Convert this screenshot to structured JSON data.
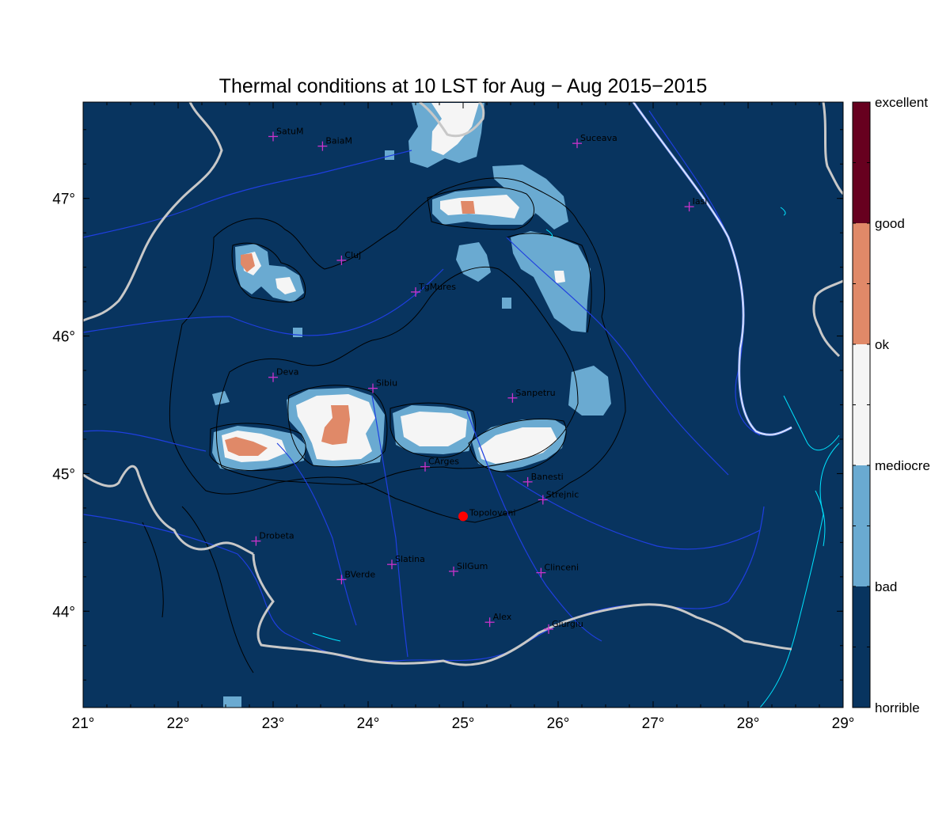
{
  "title": "Thermal conditions at 10 LST for Aug − Aug  2015−2015",
  "map": {
    "lon_range": [
      21,
      29
    ],
    "lat_range": [
      43.3,
      47.7
    ],
    "x_ticks": [
      "21°",
      "22°",
      "23°",
      "24°",
      "25°",
      "26°",
      "27°",
      "28°",
      "29°"
    ],
    "y_ticks": [
      "44°",
      "45°",
      "46°",
      "47°"
    ],
    "background_category": "horrible",
    "cities": [
      {
        "name": "SatuM",
        "lon": 23.0,
        "lat": 47.45
      },
      {
        "name": "BaiaM",
        "lon": 23.52,
        "lat": 47.38
      },
      {
        "name": "Suceava",
        "lon": 26.2,
        "lat": 47.4
      },
      {
        "name": "Iasi",
        "lon": 27.38,
        "lat": 46.94
      },
      {
        "name": "Cluj",
        "lon": 23.72,
        "lat": 46.55
      },
      {
        "name": "TgMures",
        "lon": 24.5,
        "lat": 46.32
      },
      {
        "name": "Deva",
        "lon": 23.0,
        "lat": 45.7
      },
      {
        "name": "Sibiu",
        "lon": 24.05,
        "lat": 45.62
      },
      {
        "name": "Sanpetru",
        "lon": 25.52,
        "lat": 45.55
      },
      {
        "name": "CArges",
        "lon": 24.6,
        "lat": 45.05
      },
      {
        "name": "Banesti",
        "lon": 25.68,
        "lat": 44.94
      },
      {
        "name": "Strejnic",
        "lon": 25.84,
        "lat": 44.81
      },
      {
        "name": "Drobeta",
        "lon": 22.82,
        "lat": 44.51
      },
      {
        "name": "Slatina",
        "lon": 24.25,
        "lat": 44.34
      },
      {
        "name": "SilGum",
        "lon": 24.9,
        "lat": 44.29
      },
      {
        "name": "Clinceni",
        "lon": 25.82,
        "lat": 44.28
      },
      {
        "name": "BVerde",
        "lon": 23.72,
        "lat": 44.23
      },
      {
        "name": "Alex",
        "lon": 25.28,
        "lat": 43.92
      },
      {
        "name": "Giurgiu",
        "lon": 25.9,
        "lat": 43.87
      }
    ],
    "site": {
      "name": "Topoloveni",
      "lon": 25.0,
      "lat": 44.69
    }
  },
  "legend": {
    "categories": [
      "excellent",
      "good",
      "ok",
      "mediocre",
      "bad",
      "horrible"
    ],
    "colors": {
      "excellent": "#67001f",
      "good": "#e08968",
      "ok": "#f5f5f5",
      "mediocre": "#f7f7f7",
      "bad": "#6aaad1",
      "horrible": "#08345f"
    }
  }
}
